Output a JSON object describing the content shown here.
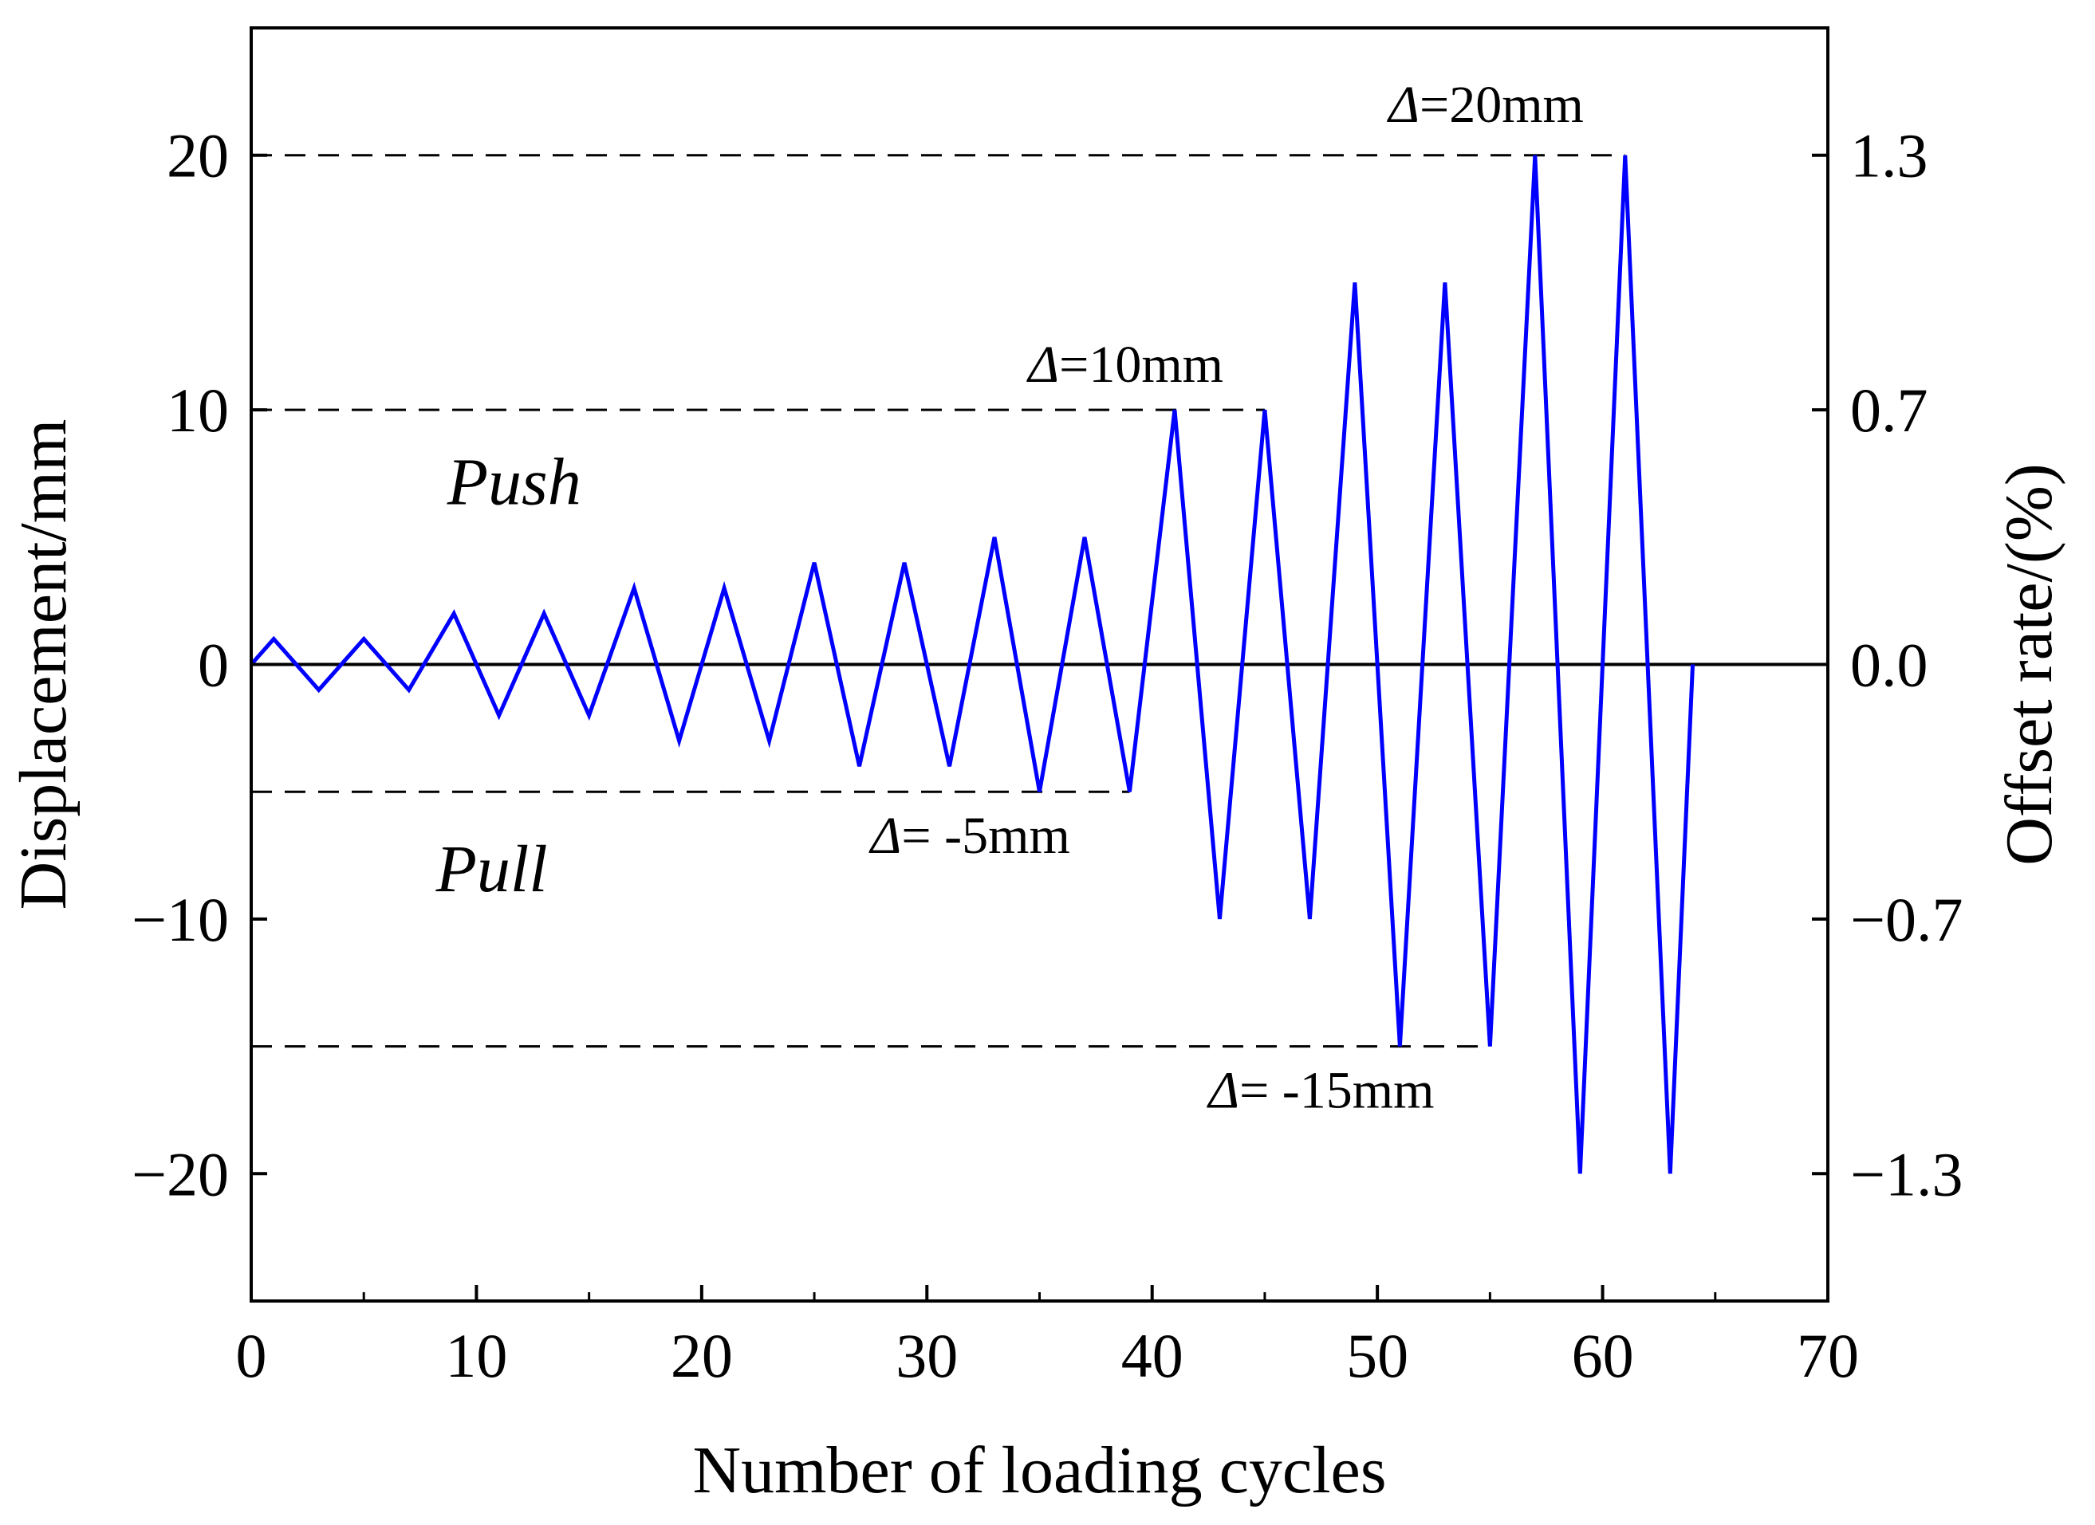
{
  "chart_data": {
    "type": "line",
    "xlabel": "Number of loading cycles",
    "ylabel": "Displacement/mm",
    "y2label": "Offset rate/(%)",
    "xlim": [
      0,
      70
    ],
    "ylim": [
      -25,
      25
    ],
    "xticks": [
      0,
      10,
      20,
      30,
      40,
      50,
      60,
      70
    ],
    "xtick_labels": [
      "0",
      "10",
      "20",
      "30",
      "40",
      "50",
      "60",
      "70"
    ],
    "yticks": [
      -20,
      -10,
      0,
      10,
      20
    ],
    "ytick_labels": [
      "−20",
      "−10",
      "0",
      "10",
      "20"
    ],
    "y2ticks": [
      -20,
      -10,
      0,
      10,
      20
    ],
    "y2tick_labels": [
      "−1.3",
      "−0.7",
      "0.0",
      "0.7",
      "1.3"
    ],
    "grid": false,
    "series": [
      {
        "color": "#0000ff",
        "x": [
          0,
          1,
          3,
          5,
          7,
          9,
          11,
          13,
          15,
          17,
          19,
          21,
          23,
          25,
          27,
          29,
          31,
          33,
          35,
          37,
          39,
          41,
          43,
          45,
          47,
          49,
          51,
          53,
          55,
          57,
          59,
          61,
          63,
          64
        ],
        "y": [
          0,
          1,
          -1,
          1,
          -1,
          2,
          -2,
          2,
          -2,
          3,
          -3,
          3,
          -3,
          4,
          -4,
          4,
          -4,
          5,
          -5,
          5,
          -5,
          10,
          -10,
          10,
          -10,
          15,
          -15,
          15,
          -15,
          20,
          -20,
          20,
          -20,
          0
        ]
      }
    ],
    "reference_lines": [
      {
        "y": 20,
        "x_end": 61,
        "style": "dashed"
      },
      {
        "y": 10,
        "x_end": 45,
        "style": "dashed"
      },
      {
        "y": -5,
        "x_end": 39,
        "style": "dashed"
      },
      {
        "y": -15,
        "x_end": 55,
        "style": "dashed"
      }
    ],
    "zero_line": true,
    "annotations": [
      {
        "delta": "Δ",
        "text": "=20mm",
        "x": 50.5,
        "y": 21.3
      },
      {
        "delta": "Δ",
        "text": "=10mm",
        "x": 34.5,
        "y": 11.1
      },
      {
        "delta": "Δ",
        "text": "= -5mm",
        "x": 27.5,
        "y": -7.4
      },
      {
        "delta": "Δ",
        "text": "= -15mm",
        "x": 42.5,
        "y": -17.4
      }
    ],
    "region_labels": [
      {
        "text": "Push",
        "x": 8.7,
        "y": 6.3
      },
      {
        "text": "Pull",
        "x": 8.2,
        "y": -8.9
      }
    ]
  }
}
